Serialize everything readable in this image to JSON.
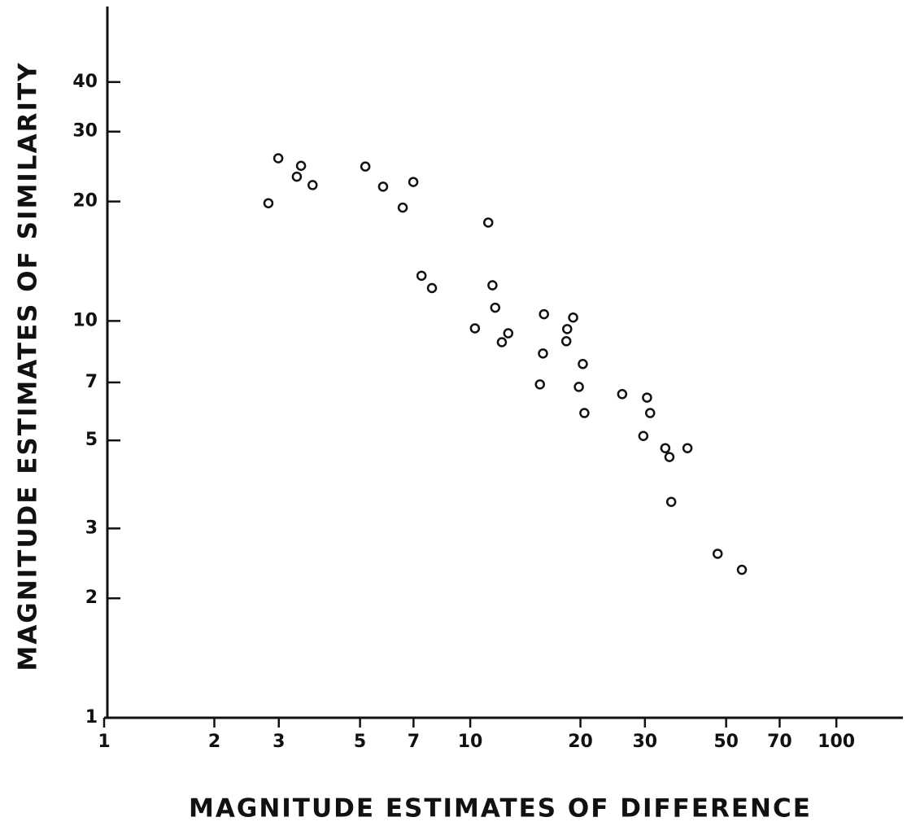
{
  "chart_data": {
    "type": "scatter",
    "xlabel": "MAGNITUDE ESTIMATES OF DIFFERENCE",
    "ylabel": "MAGNITUDE ESTIMATES OF SIMILARITY",
    "xscale": "log",
    "yscale": "log",
    "xlim": [
      1,
      152
    ],
    "ylim": [
      1,
      62
    ],
    "xticks": [
      1,
      2,
      3,
      5,
      7,
      10,
      20,
      30,
      50,
      70,
      100
    ],
    "yticks": [
      1,
      2,
      3,
      5,
      7,
      10,
      20,
      30,
      40
    ],
    "color": "#111111",
    "x": [
      2.81,
      2.99,
      3.36,
      3.45,
      3.71,
      5.17,
      5.78,
      6.54,
      6.99,
      7.36,
      7.86,
      11.2,
      10.3,
      11.5,
      11.7,
      12.2,
      12.7,
      15.5,
      15.8,
      15.9,
      18.3,
      18.4,
      19.1,
      19.8,
      20.3,
      20.5,
      26.0,
      29.7,
      30.4,
      31.0,
      34.1,
      35.0,
      39.2,
      35.4,
      47.4,
      55.2
    ],
    "y": [
      19.8,
      25.7,
      23.1,
      24.6,
      22.0,
      24.5,
      21.8,
      19.3,
      22.4,
      13.0,
      12.1,
      17.7,
      9.58,
      12.3,
      10.8,
      8.84,
      9.31,
      6.92,
      8.28,
      10.4,
      8.89,
      9.54,
      10.2,
      6.82,
      7.79,
      5.86,
      6.54,
      5.13,
      6.41,
      5.86,
      4.78,
      4.54,
      4.78,
      3.5,
      2.59,
      2.36
    ]
  }
}
